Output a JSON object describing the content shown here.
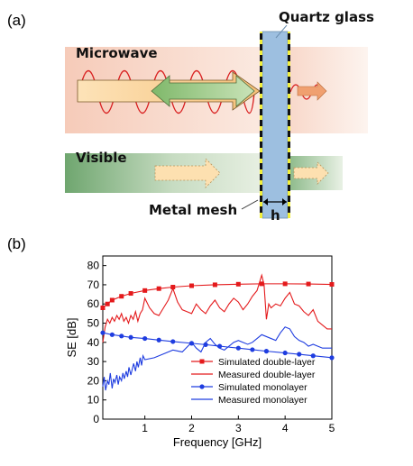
{
  "panel_a": {
    "label": "(a)",
    "quartz_label": "Quartz glass",
    "microwave_label": "Microwave",
    "visible_label": "Visible",
    "mesh_label": "Metal mesh",
    "thickness_label": "h"
  },
  "panel_b": {
    "label": "(b)"
  },
  "colors": {
    "microwave_band": "#f9dcd0",
    "visible_band": "#7fb07f",
    "glass": "#9dbfe0",
    "glass_edge": "#f2ef3a",
    "wave": "#d92020",
    "arrow_orange": "#f6c58a",
    "arrow_green": "#92c47d",
    "sim_double": "#e41a1c",
    "meas_double": "#e41a1c",
    "sim_mono": "#1f3de0",
    "meas_mono": "#1f3de0"
  },
  "chart_data": {
    "type": "line",
    "xlabel": "Frequency [GHz]",
    "ylabel": "SE [dB]",
    "xlim": [
      0.1,
      5
    ],
    "ylim": [
      0,
      85
    ],
    "xticks": [
      1,
      2,
      3,
      4,
      5
    ],
    "yticks": [
      0,
      10,
      20,
      30,
      40,
      50,
      60,
      70,
      80
    ],
    "legend_position": "lower-right",
    "grid": false,
    "series": [
      {
        "name": "Simulated double-layer",
        "color": "#e41a1c",
        "marker": "square",
        "x": [
          0.1,
          0.2,
          0.3,
          0.5,
          0.7,
          1.0,
          1.3,
          1.6,
          2.0,
          2.5,
          3.0,
          3.5,
          4.0,
          4.5,
          5.0
        ],
        "y": [
          58,
          60,
          62,
          64,
          65.5,
          67,
          68,
          68.8,
          69.5,
          70,
          70.3,
          70.5,
          70.5,
          70.4,
          70.2
        ]
      },
      {
        "name": "Measured double-layer",
        "color": "#e41a1c",
        "marker": "none",
        "x": [
          0.1,
          0.15,
          0.2,
          0.25,
          0.3,
          0.35,
          0.4,
          0.45,
          0.5,
          0.55,
          0.6,
          0.65,
          0.7,
          0.75,
          0.8,
          0.85,
          0.9,
          0.95,
          1.0,
          1.1,
          1.2,
          1.3,
          1.4,
          1.5,
          1.6,
          1.7,
          1.8,
          1.9,
          2.0,
          2.1,
          2.2,
          2.3,
          2.4,
          2.5,
          2.6,
          2.7,
          2.8,
          2.9,
          3.0,
          3.1,
          3.2,
          3.3,
          3.4,
          3.5,
          3.55,
          3.6,
          3.65,
          3.7,
          3.8,
          3.9,
          4.0,
          4.1,
          4.2,
          4.3,
          4.4,
          4.5,
          4.6,
          4.7,
          4.8,
          4.9,
          5.0
        ],
        "y": [
          40,
          48,
          52,
          50,
          53,
          51,
          54,
          52,
          55,
          51,
          53,
          50,
          54,
          52,
          56,
          51,
          55,
          57,
          63,
          58,
          55,
          54,
          58,
          62,
          68,
          61,
          57,
          56,
          55,
          60,
          57,
          55,
          59,
          62,
          58,
          56,
          60,
          63,
          61,
          57,
          60,
          64,
          67,
          75,
          70,
          52,
          60,
          58,
          60,
          59,
          63,
          66,
          60,
          59,
          56,
          54,
          57,
          51,
          49,
          47,
          47
        ]
      },
      {
        "name": "Simulated monolayer",
        "color": "#1f3de0",
        "marker": "circle",
        "x": [
          0.1,
          0.3,
          0.5,
          0.7,
          1.0,
          1.3,
          1.6,
          2.0,
          2.3,
          2.6,
          3.0,
          3.3,
          3.6,
          4.0,
          4.3,
          4.6,
          5.0
        ],
        "y": [
          45,
          44,
          43.3,
          42.6,
          42,
          41.2,
          40.4,
          39.5,
          38.8,
          38,
          37,
          36.2,
          35.4,
          34.5,
          33.8,
          33,
          32
        ]
      },
      {
        "name": "Measured monolayer",
        "color": "#1f3de0",
        "marker": "none",
        "x": [
          0.1,
          0.13,
          0.16,
          0.2,
          0.23,
          0.26,
          0.3,
          0.33,
          0.36,
          0.4,
          0.43,
          0.46,
          0.5,
          0.53,
          0.56,
          0.6,
          0.63,
          0.66,
          0.7,
          0.73,
          0.76,
          0.8,
          0.83,
          0.86,
          0.9,
          0.93,
          0.96,
          1.0,
          1.2,
          1.4,
          1.6,
          1.8,
          2.0,
          2.1,
          2.2,
          2.3,
          2.4,
          2.5,
          2.6,
          2.7,
          2.8,
          2.9,
          3.0,
          3.1,
          3.2,
          3.3,
          3.4,
          3.5,
          3.6,
          3.7,
          3.8,
          3.9,
          4.0,
          4.1,
          4.2,
          4.3,
          4.4,
          4.5,
          4.6,
          4.7,
          4.8,
          4.9,
          5.0
        ],
        "y": [
          17,
          22,
          15,
          20,
          18,
          24,
          16,
          21,
          19,
          23,
          18,
          22,
          20,
          24,
          21,
          25,
          22,
          27,
          23,
          26,
          29,
          25,
          30,
          27,
          32,
          28,
          33,
          31,
          32,
          34,
          36,
          35,
          40,
          37,
          35,
          40,
          42,
          39,
          37,
          36,
          38,
          40,
          41,
          40,
          39,
          40,
          42,
          44,
          43,
          42,
          41,
          45,
          48,
          47,
          43,
          41,
          40,
          38,
          39,
          38,
          37,
          37,
          37
        ]
      }
    ]
  }
}
